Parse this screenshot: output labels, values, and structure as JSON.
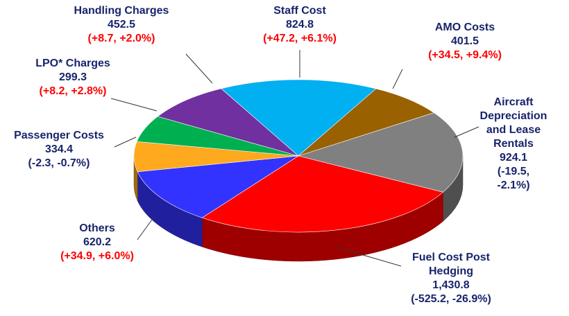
{
  "chart_data": {
    "type": "pie3d",
    "categories": [
      "Staff Cost",
      "AMO Costs",
      "Aircraft\nDepreciation\nand Lease\nRentals",
      "Fuel Cost Post\nHedging",
      "Others",
      "Passenger Costs",
      "LPO* Charges",
      "Handling Charges"
    ],
    "values": [
      824.8,
      401.5,
      924.1,
      1430.8,
      620.2,
      334.4,
      299.3,
      452.5
    ],
    "value_labels": [
      "824.8",
      "401.5",
      "924.1",
      "1,430.8",
      "620.2",
      "334.4",
      "299.3",
      "452.5"
    ],
    "change_labels": [
      "(+47.2, +6.1%)",
      "(+34.5, +9.4%)",
      "(-19.5, -2.1%)",
      "(-525.2, -26.9%)",
      "(+34.9, +6.0%)",
      "(-2.3, -0.7%)",
      "(+8.2, +2.8%)",
      "(+8.7, +2.0%)"
    ],
    "change_colors": [
      "#ff0000",
      "#ff0000",
      "#17246b",
      "#17246b",
      "#ff0000",
      "#17246b",
      "#ff0000",
      "#ff0000"
    ],
    "colors": [
      "#00b0f0",
      "#996100",
      "#808080",
      "#ff0000",
      "#3333ff",
      "#ffa91f",
      "#00b050",
      "#7030a0"
    ]
  }
}
